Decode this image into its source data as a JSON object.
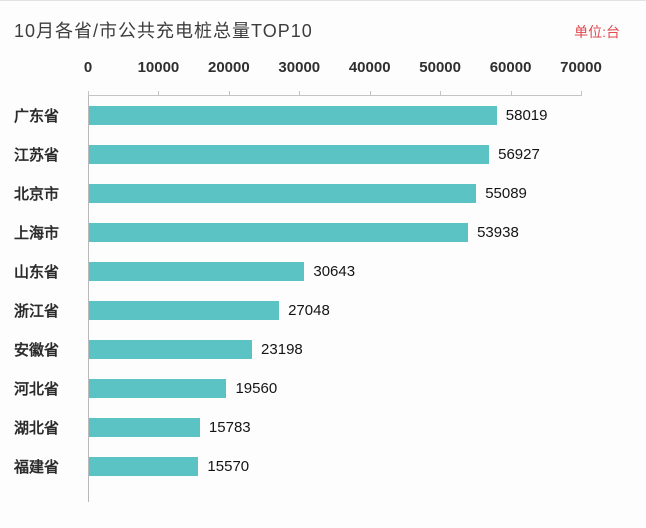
{
  "header": {
    "title": "10月各省/市公共充电桩总量TOP10",
    "unit": "单位:台"
  },
  "chart_data": {
    "type": "bar",
    "orientation": "horizontal",
    "title": "10月各省/市公共充电桩总量TOP10",
    "unit_label": "单位:台",
    "categories": [
      "广东省",
      "江苏省",
      "北京市",
      "上海市",
      "山东省",
      "浙江省",
      "安徽省",
      "河北省",
      "湖北省",
      "福建省"
    ],
    "values": [
      58019,
      56927,
      55089,
      53938,
      30643,
      27048,
      23198,
      19560,
      15783,
      15570
    ],
    "xlabel": "",
    "ylabel": "",
    "xlim": [
      0,
      70000
    ],
    "x_ticks": [
      0,
      10000,
      20000,
      30000,
      40000,
      50000,
      60000,
      70000
    ],
    "bar_color": "#5cc3c5",
    "grid": "off",
    "legend_position": "none",
    "axis_position": "top"
  }
}
